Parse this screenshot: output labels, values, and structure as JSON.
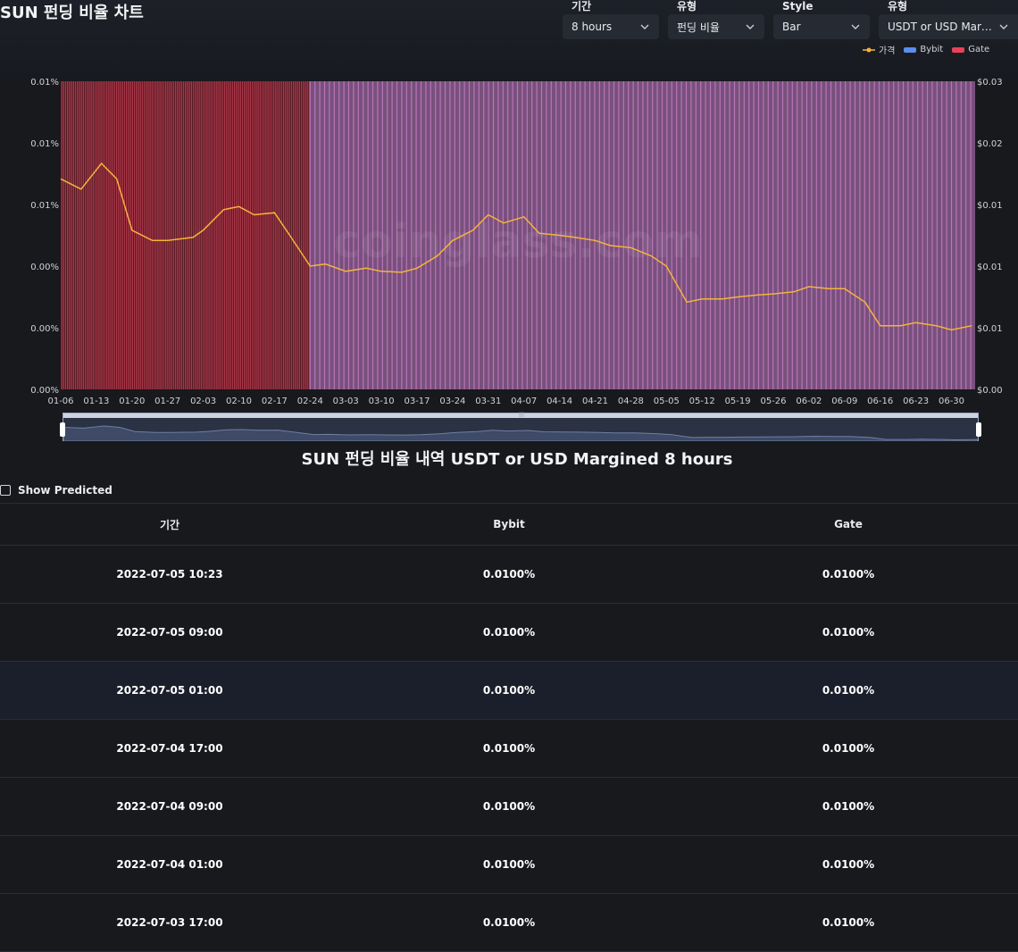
{
  "page": {
    "title": "SUN 펀딩 비율 차트"
  },
  "filters": [
    {
      "label": "기간",
      "value": "8 hours"
    },
    {
      "label": "유형",
      "value": "펀딩 비율"
    },
    {
      "label": "Style",
      "value": "Bar"
    },
    {
      "label": "유형",
      "value": "USDT or USD Margi..."
    }
  ],
  "legend": [
    {
      "label": "가격",
      "color": "#f5b43a",
      "marker": "line"
    },
    {
      "label": "Bybit",
      "color": "#5b8def",
      "marker": "bar"
    },
    {
      "label": "Gate",
      "color": "#e8425a",
      "marker": "bar"
    }
  ],
  "watermark": "coinglass.com",
  "chart_data": {
    "type": "bar",
    "title": "",
    "y_left_ticks": [
      "0.00%",
      "0.00%",
      "0.00%",
      "0.01%",
      "0.01%",
      "0.01%"
    ],
    "y_right_ticks": [
      "$0.00",
      "$0.01",
      "$0.01",
      "$0.01",
      "$0.02",
      "$0.03"
    ],
    "x_ticks": [
      "01-06",
      "01-13",
      "01-20",
      "01-27",
      "02-03",
      "02-10",
      "02-17",
      "02-24",
      "03-03",
      "03-10",
      "03-17",
      "03-24",
      "03-31",
      "04-07",
      "04-14",
      "04-21",
      "04-28",
      "05-05",
      "05-12",
      "05-19",
      "05-26",
      "06-02",
      "06-09",
      "06-16",
      "06-23",
      "06-30"
    ],
    "funding_rate_percent": {
      "Bybit": 0.01,
      "Gate": 0.01
    },
    "gate_only_until": "02-24",
    "series": [
      {
        "name": "가격",
        "type": "line",
        "color": "#f5b43a",
        "x": [
          "01-06",
          "01-10",
          "01-14",
          "01-17",
          "01-20",
          "01-24",
          "01-27",
          "02-01",
          "02-03",
          "02-07",
          "02-10",
          "02-13",
          "02-17",
          "02-20",
          "02-24",
          "02-27",
          "03-03",
          "03-07",
          "03-10",
          "03-14",
          "03-17",
          "03-21",
          "03-24",
          "03-28",
          "03-31",
          "04-03",
          "04-07",
          "04-10",
          "04-14",
          "04-17",
          "04-21",
          "04-24",
          "04-28",
          "05-02",
          "05-05",
          "05-09",
          "05-12",
          "05-16",
          "05-19",
          "05-23",
          "05-26",
          "05-30",
          "06-02",
          "06-06",
          "06-09",
          "06-13",
          "06-16",
          "06-20",
          "06-23",
          "06-27",
          "06-30",
          "07-04"
        ],
        "y": [
          0.0205,
          0.0195,
          0.022,
          0.0205,
          0.0155,
          0.0145,
          0.0145,
          0.0148,
          0.0155,
          0.0175,
          0.0178,
          0.017,
          0.0172,
          0.015,
          0.012,
          0.0122,
          0.0115,
          0.0118,
          0.0115,
          0.0114,
          0.0118,
          0.013,
          0.0145,
          0.0155,
          0.017,
          0.0162,
          0.0168,
          0.0152,
          0.015,
          0.0148,
          0.0145,
          0.014,
          0.0138,
          0.013,
          0.012,
          0.0085,
          0.0088,
          0.0088,
          0.009,
          0.0092,
          0.0093,
          0.0095,
          0.01,
          0.0098,
          0.0098,
          0.0085,
          0.0062,
          0.0062,
          0.0065,
          0.0062,
          0.0058,
          0.0062
        ]
      }
    ]
  },
  "history": {
    "title": "SUN 펀딩 비율 내역 USDT or USD Margined 8 hours",
    "show_predicted_label": "Show Predicted",
    "columns": [
      "기간",
      "Bybit",
      "Gate"
    ],
    "rows": [
      [
        "2022-07-05 10:23",
        "0.0100%",
        "0.0100%"
      ],
      [
        "2022-07-05 09:00",
        "0.0100%",
        "0.0100%"
      ],
      [
        "2022-07-05 01:00",
        "0.0100%",
        "0.0100%"
      ],
      [
        "2022-07-04 17:00",
        "0.0100%",
        "0.0100%"
      ],
      [
        "2022-07-04 09:00",
        "0.0100%",
        "0.0100%"
      ],
      [
        "2022-07-04 01:00",
        "0.0100%",
        "0.0100%"
      ],
      [
        "2022-07-03 17:00",
        "0.0100%",
        "0.0100%"
      ]
    ]
  }
}
